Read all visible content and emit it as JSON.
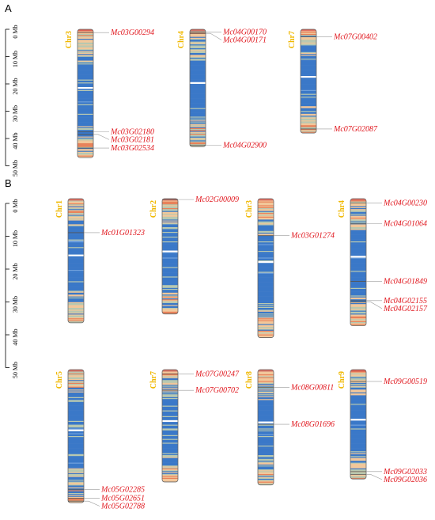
{
  "panels": [
    {
      "letter": "A",
      "ruler": {
        "unit": "Mb",
        "ticks": [
          "0 Mb",
          "10 Mb",
          "20 Mb",
          "30 Mb",
          "40 Mb",
          "50 Mb"
        ]
      },
      "chromosomes": [
        {
          "name": "Chr3",
          "length_mb": 47,
          "genes": [
            {
              "id": "Mc03G00294",
              "pos_mb": 1.2
            },
            {
              "id": "Mc03G02180",
              "pos_mb": 37.5
            },
            {
              "id": "Mc03G02181",
              "pos_mb": 38.5
            },
            {
              "id": "Mc03G02534",
              "pos_mb": 43.5
            }
          ]
        },
        {
          "name": "Chr4",
          "length_mb": 43,
          "genes": [
            {
              "id": "Mc04G00170",
              "pos_mb": 1.0
            },
            {
              "id": "Mc04G00171",
              "pos_mb": 1.5
            },
            {
              "id": "Mc04G02900",
              "pos_mb": 42.5
            }
          ]
        },
        {
          "name": "Chr7",
          "length_mb": 38,
          "genes": [
            {
              "id": "Mc07G00402",
              "pos_mb": 2.8
            },
            {
              "id": "Mc07G02087",
              "pos_mb": 36.5
            }
          ]
        }
      ]
    },
    {
      "letter": "B",
      "ruler": {
        "unit": "Mb",
        "ticks": [
          "0 Mb",
          "10 Mb",
          "20 Mb",
          "30 Mb",
          "40 Mb",
          "50 Mb"
        ]
      },
      "chromosomes": [
        {
          "name": "Chr1",
          "length_mb": 42,
          "genes": [
            {
              "id": "Mc01G01323",
              "pos_mb": 11.5
            }
          ]
        },
        {
          "name": "Chr2",
          "length_mb": 39,
          "genes": [
            {
              "id": "Mc02G00009",
              "pos_mb": 0.3
            }
          ]
        },
        {
          "name": "Chr3",
          "length_mb": 47,
          "genes": [
            {
              "id": "Mc03G01274",
              "pos_mb": 12.5
            }
          ]
        },
        {
          "name": "Chr4",
          "length_mb": 43,
          "genes": [
            {
              "id": "Mc04G00230",
              "pos_mb": 1.5
            },
            {
              "id": "Mc04G01064",
              "pos_mb": 8.5
            },
            {
              "id": "Mc04G01849",
              "pos_mb": 28.0
            },
            {
              "id": "Mc04G02155",
              "pos_mb": 34.5
            },
            {
              "id": "Mc04G02157",
              "pos_mb": 35.0
            }
          ]
        },
        {
          "name": "Chr5",
          "length_mb": 45,
          "genes": [
            {
              "id": "Mc05G02285",
              "pos_mb": 40.5
            },
            {
              "id": "Mc05G02651",
              "pos_mb": 43.5
            },
            {
              "id": "Mc05G02788",
              "pos_mb": 44.5
            }
          ]
        },
        {
          "name": "Chr7",
          "length_mb": 38,
          "genes": [
            {
              "id": "Mc07G00247",
              "pos_mb": 1.5
            },
            {
              "id": "Mc07G00702",
              "pos_mb": 7.0
            }
          ]
        },
        {
          "name": "Chr8",
          "length_mb": 39,
          "genes": [
            {
              "id": "Mc08G00811",
              "pos_mb": 6.0
            },
            {
              "id": "Mc08G01696",
              "pos_mb": 18.5
            }
          ]
        },
        {
          "name": "Chr9",
          "length_mb": 37,
          "genes": [
            {
              "id": "Mc09G00519",
              "pos_mb": 4.0
            },
            {
              "id": "Mc09G02033",
              "pos_mb": 34.5
            },
            {
              "id": "Mc09G02036",
              "pos_mb": 35.5
            }
          ]
        }
      ]
    }
  ],
  "colors": {
    "gene_label": "#e0151c",
    "chr_label": "#f0b800",
    "density_high": "#e8825a",
    "density_mid": "#f2c79a",
    "density_neutral": "#b8c8b0",
    "density_low": "#3a78c8",
    "density_min": "#ffffff"
  }
}
